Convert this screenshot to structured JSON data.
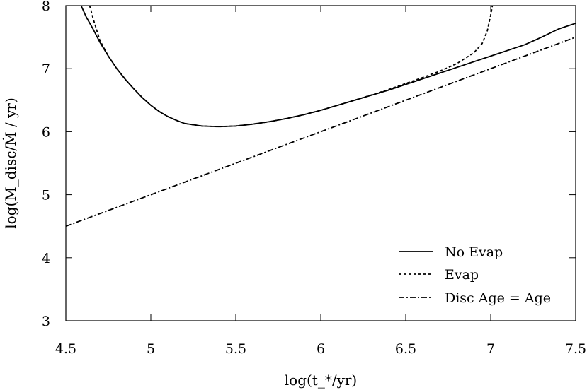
{
  "chart_data": {
    "type": "line",
    "title": "",
    "xlabel": "log(t_*/yr)",
    "ylabel": "log(M_disc/Ṁ / yr)",
    "xlim": [
      4.5,
      7.5
    ],
    "ylim": [
      3,
      8
    ],
    "xticks": [
      4.5,
      5,
      5.5,
      6,
      6.5,
      7,
      7.5
    ],
    "xtick_labels": [
      "4.5",
      "5",
      "5.5",
      "6",
      "6.5",
      "7",
      "7.5"
    ],
    "yticks": [
      3,
      4,
      5,
      6,
      7,
      8
    ],
    "ytick_labels": [
      "3",
      "4",
      "5",
      "6",
      "7",
      "8"
    ],
    "grid": false,
    "legend_position": "bottom-right",
    "series": [
      {
        "name": "No Evap",
        "dash": "solid",
        "x": [
          4.59,
          4.62,
          4.66,
          4.7,
          4.75,
          4.8,
          4.85,
          4.9,
          4.95,
          5.0,
          5.05,
          5.1,
          5.15,
          5.2,
          5.3,
          5.4,
          5.5,
          5.6,
          5.7,
          5.8,
          5.9,
          6.0,
          6.2,
          6.4,
          6.6,
          6.8,
          7.0,
          7.2,
          7.3,
          7.4,
          7.5
        ],
        "y": [
          8.0,
          7.82,
          7.63,
          7.42,
          7.2,
          7.0,
          6.83,
          6.68,
          6.54,
          6.42,
          6.32,
          6.24,
          6.18,
          6.13,
          6.09,
          6.08,
          6.09,
          6.12,
          6.16,
          6.21,
          6.27,
          6.34,
          6.5,
          6.66,
          6.84,
          7.02,
          7.2,
          7.38,
          7.5,
          7.63,
          7.72
        ]
      },
      {
        "name": "Evap",
        "dash": "dashed",
        "x": [
          4.64,
          4.66,
          4.7,
          4.75,
          4.8,
          4.85,
          4.9,
          4.95,
          5.0,
          5.05,
          5.1,
          5.15,
          5.2,
          5.3,
          5.4,
          5.5,
          5.6,
          5.7,
          5.8,
          5.9,
          6.0,
          6.2,
          6.4,
          6.6,
          6.7,
          6.8,
          6.9,
          6.95,
          6.98,
          7.0,
          7.01
        ],
        "y": [
          8.0,
          7.8,
          7.45,
          7.2,
          7.0,
          6.83,
          6.68,
          6.54,
          6.42,
          6.32,
          6.24,
          6.18,
          6.13,
          6.09,
          6.08,
          6.09,
          6.12,
          6.16,
          6.21,
          6.27,
          6.34,
          6.5,
          6.67,
          6.86,
          6.96,
          7.08,
          7.25,
          7.4,
          7.6,
          7.85,
          8.0
        ]
      },
      {
        "name": "Disc Age = Age",
        "dash": "dashdot",
        "x": [
          4.5,
          7.5
        ],
        "y": [
          4.5,
          7.5
        ]
      }
    ]
  }
}
